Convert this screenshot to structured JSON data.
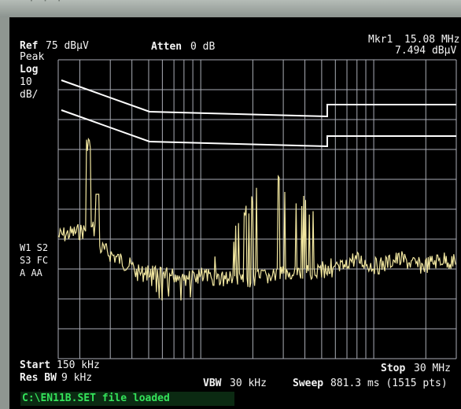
{
  "header": {
    "ref_label": "Ref",
    "ref_value": "75 dBµV",
    "detector": "Peak",
    "atten_label": "Atten",
    "atten_value": "0 dB",
    "marker_label": "Mkr1",
    "marker_freq": "15.08 MHz",
    "marker_level": "7.494 dBµV"
  },
  "scale": {
    "type": "Log",
    "per_div_value": "10",
    "per_div_unit": "dB/"
  },
  "side_flags": {
    "row1": "W1 S2",
    "row2": "S3 FC",
    "row3": "A  AA"
  },
  "footer": {
    "start_label": "Start",
    "start_value": "150 kHz",
    "stop_label": "Stop",
    "stop_value": "30 MHz",
    "res_bw_label": "Res BW",
    "res_bw_value": "9 kHz",
    "vbw_label": "VBW",
    "vbw_value": "30 kHz",
    "sweep_label": "Sweep",
    "sweep_value": "881.3 ms (1515 pts)"
  },
  "status_bar": {
    "message": "C:\\EN11B.SET file loaded"
  },
  "colors": {
    "trace": "#f2e7a0",
    "limit_line": "#ffffff",
    "grid": "#c8ccd6",
    "status_text": "#34e35a"
  }
}
